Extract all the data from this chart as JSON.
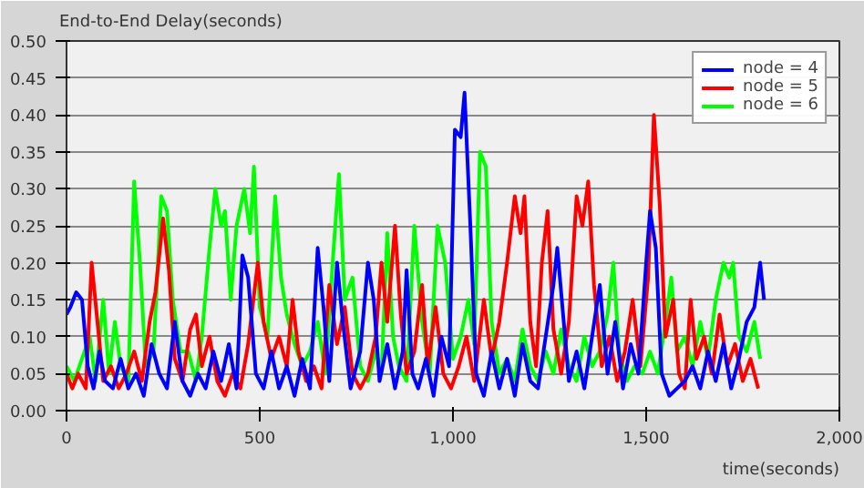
{
  "chart_data": {
    "type": "line",
    "title": "End-to-End Delay(seconds)",
    "xlabel": "time(seconds)",
    "xlim": [
      0,
      2000
    ],
    "ylim": [
      0,
      0.5
    ],
    "xticks": [
      0,
      500,
      {
        "value": 1000,
        "label": "1,000"
      },
      {
        "value": 1500,
        "label": "1,500"
      },
      {
        "value": 2000,
        "label": "2,000"
      }
    ],
    "yticks": [
      {
        "value": 0,
        "label": "0.00"
      },
      {
        "value": 0.05,
        "label": "0.05"
      },
      {
        "value": 0.1,
        "label": "0.10"
      },
      {
        "value": 0.15,
        "label": "0.15"
      },
      {
        "value": 0.2,
        "label": "0.20"
      },
      {
        "value": 0.25,
        "label": "0.25"
      },
      {
        "value": 0.3,
        "label": "0.30"
      },
      {
        "value": 0.35,
        "label": "0.35"
      },
      {
        "value": 0.4,
        "label": "0.40"
      },
      {
        "value": 0.45,
        "label": "0.45"
      },
      {
        "value": 0.5,
        "label": "0.50"
      }
    ],
    "grid": "y",
    "legend": "top right",
    "marker": "none",
    "line_style": "solid",
    "series": [
      {
        "name": "node = 4",
        "color": "#0000ff",
        "x": [
          0,
          10,
          25,
          40,
          55,
          70,
          85,
          100,
          120,
          140,
          160,
          180,
          200,
          220,
          240,
          260,
          280,
          300,
          320,
          340,
          360,
          380,
          400,
          420,
          440,
          455,
          470,
          490,
          510,
          530,
          550,
          570,
          590,
          610,
          630,
          650,
          665,
          680,
          700,
          715,
          735,
          760,
          780,
          795,
          810,
          830,
          850,
          870,
          880,
          895,
          910,
          930,
          950,
          970,
          990,
          1005,
          1020,
          1030,
          1045,
          1060,
          1080,
          1100,
          1120,
          1140,
          1160,
          1180,
          1200,
          1220,
          1240,
          1260,
          1270,
          1285,
          1300,
          1320,
          1340,
          1360,
          1380,
          1400,
          1420,
          1440,
          1460,
          1480,
          1500,
          1510,
          1525,
          1540,
          1560,
          1580,
          1600,
          1620,
          1640,
          1660,
          1680,
          1700,
          1720,
          1740,
          1760,
          1780,
          1795,
          1805
        ],
        "values": [
          0.13,
          0.14,
          0.16,
          0.15,
          0.06,
          0.03,
          0.08,
          0.04,
          0.03,
          0.07,
          0.03,
          0.05,
          0.02,
          0.09,
          0.05,
          0.03,
          0.12,
          0.04,
          0.02,
          0.05,
          0.03,
          0.08,
          0.04,
          0.09,
          0.03,
          0.21,
          0.18,
          0.05,
          0.03,
          0.08,
          0.03,
          0.06,
          0.02,
          0.07,
          0.03,
          0.22,
          0.14,
          0.04,
          0.2,
          0.12,
          0.03,
          0.08,
          0.2,
          0.15,
          0.04,
          0.09,
          0.03,
          0.08,
          0.19,
          0.05,
          0.03,
          0.07,
          0.02,
          0.1,
          0.06,
          0.38,
          0.37,
          0.43,
          0.25,
          0.05,
          0.02,
          0.08,
          0.03,
          0.07,
          0.02,
          0.09,
          0.04,
          0.03,
          0.1,
          0.17,
          0.22,
          0.13,
          0.04,
          0.08,
          0.03,
          0.1,
          0.17,
          0.05,
          0.12,
          0.03,
          0.09,
          0.05,
          0.2,
          0.27,
          0.22,
          0.05,
          0.02,
          0.03,
          0.04,
          0.06,
          0.03,
          0.08,
          0.04,
          0.09,
          0.03,
          0.07,
          0.12,
          0.14,
          0.2,
          0.15
        ]
      },
      {
        "name": "node = 5",
        "color": "#ff0000",
        "x": [
          0,
          15,
          30,
          50,
          65,
          80,
          95,
          115,
          135,
          155,
          175,
          195,
          215,
          230,
          250,
          265,
          280,
          300,
          320,
          335,
          350,
          370,
          390,
          410,
          430,
          450,
          470,
          495,
          510,
          530,
          550,
          570,
          585,
          600,
          620,
          640,
          660,
          680,
          700,
          720,
          740,
          760,
          780,
          800,
          815,
          830,
          850,
          865,
          880,
          900,
          920,
          935,
          955,
          975,
          995,
          1015,
          1035,
          1055,
          1080,
          1100,
          1120,
          1140,
          1160,
          1175,
          1185,
          1200,
          1215,
          1230,
          1245,
          1260,
          1280,
          1300,
          1320,
          1335,
          1350,
          1365,
          1385,
          1405,
          1425,
          1445,
          1465,
          1485,
          1505,
          1520,
          1535,
          1550,
          1570,
          1585,
          1600,
          1615,
          1630,
          1650,
          1670,
          1690,
          1710,
          1730,
          1750,
          1770,
          1790
        ],
        "values": [
          0.05,
          0.03,
          0.05,
          0.03,
          0.2,
          0.12,
          0.04,
          0.06,
          0.03,
          0.05,
          0.08,
          0.04,
          0.12,
          0.16,
          0.26,
          0.19,
          0.07,
          0.04,
          0.11,
          0.13,
          0.06,
          0.1,
          0.04,
          0.02,
          0.05,
          0.03,
          0.09,
          0.2,
          0.12,
          0.07,
          0.1,
          0.06,
          0.15,
          0.08,
          0.04,
          0.06,
          0.03,
          0.17,
          0.09,
          0.14,
          0.05,
          0.03,
          0.05,
          0.1,
          0.2,
          0.12,
          0.25,
          0.13,
          0.05,
          0.08,
          0.17,
          0.06,
          0.14,
          0.05,
          0.03,
          0.06,
          0.1,
          0.04,
          0.15,
          0.07,
          0.12,
          0.2,
          0.29,
          0.24,
          0.29,
          0.12,
          0.06,
          0.2,
          0.27,
          0.11,
          0.05,
          0.12,
          0.29,
          0.25,
          0.31,
          0.17,
          0.06,
          0.1,
          0.04,
          0.08,
          0.15,
          0.06,
          0.18,
          0.4,
          0.28,
          0.1,
          0.15,
          0.05,
          0.03,
          0.15,
          0.07,
          0.1,
          0.05,
          0.13,
          0.06,
          0.09,
          0.04,
          0.07,
          0.03
        ]
      },
      {
        "name": "node = 6",
        "color": "#00ff00",
        "x": [
          0,
          20,
          40,
          60,
          75,
          95,
          110,
          125,
          140,
          160,
          175,
          190,
          205,
          225,
          245,
          260,
          275,
          295,
          315,
          335,
          350,
          370,
          385,
          400,
          410,
          425,
          440,
          460,
          475,
          485,
          500,
          520,
          540,
          555,
          570,
          590,
          610,
          630,
          650,
          670,
          690,
          705,
          720,
          740,
          760,
          780,
          800,
          815,
          830,
          845,
          860,
          880,
          900,
          920,
          940,
          960,
          980,
          1000,
          1020,
          1040,
          1055,
          1070,
          1085,
          1100,
          1120,
          1140,
          1160,
          1180,
          1200,
          1220,
          1240,
          1260,
          1280,
          1300,
          1320,
          1340,
          1360,
          1380,
          1400,
          1415,
          1430,
          1450,
          1470,
          1490,
          1510,
          1530,
          1550,
          1565,
          1580,
          1600,
          1620,
          1640,
          1660,
          1680,
          1700,
          1715,
          1725,
          1740,
          1760,
          1780,
          1795
        ],
        "values": [
          0.06,
          0.04,
          0.07,
          0.1,
          0.04,
          0.15,
          0.05,
          0.12,
          0.06,
          0.04,
          0.31,
          0.2,
          0.06,
          0.08,
          0.29,
          0.27,
          0.15,
          0.08,
          0.08,
          0.04,
          0.1,
          0.22,
          0.3,
          0.25,
          0.27,
          0.15,
          0.25,
          0.3,
          0.24,
          0.33,
          0.14,
          0.1,
          0.29,
          0.18,
          0.13,
          0.09,
          0.06,
          0.08,
          0.12,
          0.05,
          0.21,
          0.32,
          0.15,
          0.18,
          0.06,
          0.04,
          0.08,
          0.05,
          0.24,
          0.1,
          0.06,
          0.04,
          0.25,
          0.12,
          0.05,
          0.25,
          0.2,
          0.07,
          0.1,
          0.15,
          0.09,
          0.35,
          0.33,
          0.12,
          0.05,
          0.07,
          0.04,
          0.11,
          0.06,
          0.04,
          0.08,
          0.05,
          0.11,
          0.06,
          0.04,
          0.1,
          0.06,
          0.08,
          0.13,
          0.2,
          0.08,
          0.04,
          0.06,
          0.05,
          0.08,
          0.05,
          0.12,
          0.18,
          0.08,
          0.1,
          0.06,
          0.12,
          0.07,
          0.15,
          0.2,
          0.18,
          0.2,
          0.1,
          0.08,
          0.12,
          0.07
        ]
      }
    ]
  }
}
